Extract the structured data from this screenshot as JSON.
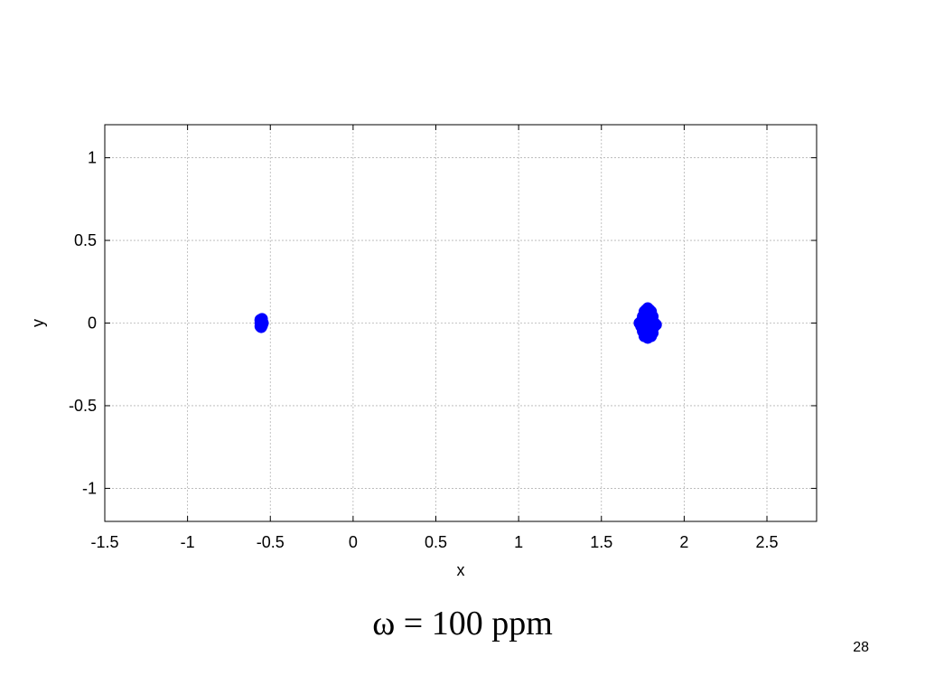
{
  "chart_data": {
    "type": "scatter",
    "title": "",
    "xlabel": "x",
    "ylabel": "y",
    "xlim": [
      -1.5,
      2.8
    ],
    "ylim": [
      -1.2,
      1.2
    ],
    "xticks": [
      -1.5,
      -1,
      -0.5,
      0,
      0.5,
      1,
      1.5,
      2,
      2.5
    ],
    "xtick_labels": [
      "-1.5",
      "-1",
      "-0.5",
      "0",
      "0.5",
      "1",
      "1.5",
      "2",
      "2.5"
    ],
    "yticks": [
      -1,
      -0.5,
      0,
      0.5,
      1
    ],
    "ytick_labels": [
      "-1",
      "-0.5",
      "0",
      "0.5",
      "1"
    ],
    "grid": true,
    "series": [
      {
        "color": "#0000ff",
        "points": [
          [
            -0.56,
            -0.02
          ],
          [
            -0.56,
            0.0
          ],
          [
            -0.56,
            0.02
          ],
          [
            -0.55,
            -0.01
          ],
          [
            -0.55,
            0.01
          ],
          [
            -0.55,
            0.025
          ],
          [
            -0.545,
            0.0
          ],
          [
            -0.555,
            -0.025
          ],
          [
            -0.55,
            -0.015
          ],
          [
            -0.56,
            0.015
          ],
          [
            1.76,
            0.07
          ],
          [
            1.78,
            0.09
          ],
          [
            1.8,
            0.07
          ],
          [
            1.75,
            0.04
          ],
          [
            1.77,
            0.05
          ],
          [
            1.79,
            0.05
          ],
          [
            1.81,
            0.04
          ],
          [
            1.74,
            0.01
          ],
          [
            1.76,
            0.02
          ],
          [
            1.78,
            0.0
          ],
          [
            1.8,
            0.02
          ],
          [
            1.82,
            0.0
          ],
          [
            1.74,
            -0.02
          ],
          [
            1.76,
            -0.03
          ],
          [
            1.78,
            -0.02
          ],
          [
            1.8,
            -0.04
          ],
          [
            1.82,
            -0.02
          ],
          [
            1.75,
            -0.05
          ],
          [
            1.77,
            -0.06
          ],
          [
            1.79,
            -0.05
          ],
          [
            1.81,
            -0.06
          ],
          [
            1.76,
            -0.08
          ],
          [
            1.78,
            -0.09
          ],
          [
            1.8,
            -0.08
          ],
          [
            1.77,
            0.08
          ],
          [
            1.79,
            0.08
          ],
          [
            1.73,
            0.0
          ],
          [
            1.83,
            -0.01
          ]
        ]
      }
    ]
  },
  "slide": {
    "caption": "ω = 100 ppm",
    "page_number": "28"
  }
}
